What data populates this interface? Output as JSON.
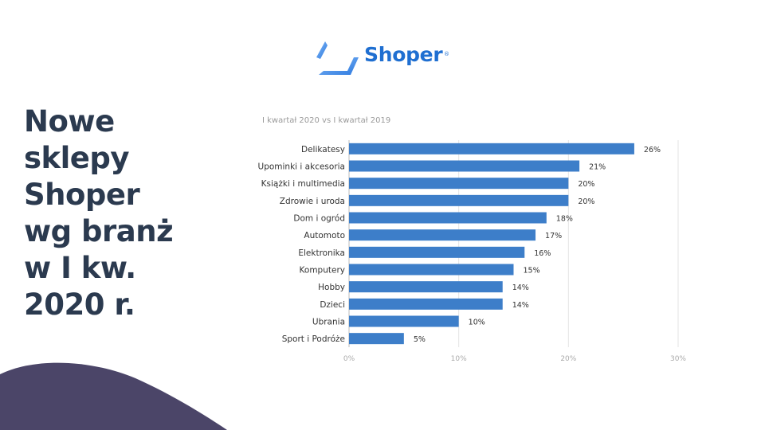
{
  "logo": {
    "text": "Shoper",
    "reg": "®",
    "color": "#1f6fd1"
  },
  "headline": [
    "Nowe",
    "sklepy",
    "Shoper",
    "wg branż",
    "w I kw.",
    "2020 r."
  ],
  "chart_data": {
    "type": "bar",
    "orientation": "horizontal",
    "subtitle": "I kwartał 2020 vs I kwartał 2019",
    "categories": [
      "Delikatesy",
      "Upominki i akcesoria",
      "Książki i multimedia",
      "Zdrowie i uroda",
      "Dom i ogród",
      "Automoto",
      "Elektronika",
      "Komputery",
      "Hobby",
      "Dzieci",
      "Ubrania",
      "Sport i Podróże"
    ],
    "values": [
      26,
      21,
      20,
      20,
      18,
      17,
      16,
      15,
      14,
      14,
      10,
      5
    ],
    "data_labels": [
      "26%",
      "21%",
      "20%",
      "20%",
      "18%",
      "17%",
      "16%",
      "15%",
      "14%",
      "14%",
      "10%",
      "5%"
    ],
    "xlim": [
      0,
      30
    ],
    "xticks": [
      0,
      10,
      20,
      30
    ],
    "xtick_labels": [
      "0%",
      "10%",
      "20%",
      "30%"
    ],
    "grid": true,
    "bar_color": "#3d7ec9"
  },
  "colors": {
    "headline": "#2b3a4f",
    "blob": "#4b4568"
  }
}
